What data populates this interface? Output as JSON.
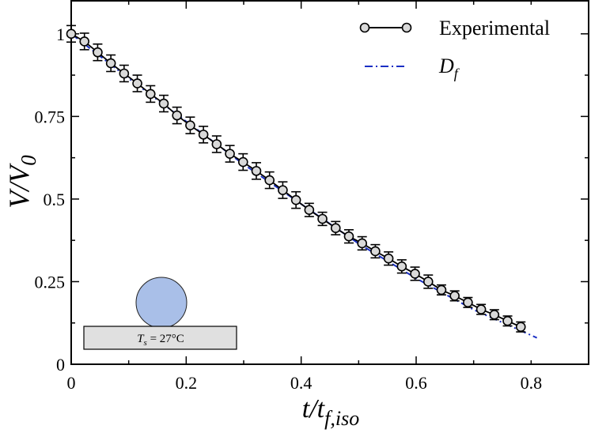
{
  "chart_data": {
    "type": "line",
    "title": "",
    "xlabel": "t/t",
    "xlabel_sub": "f,iso",
    "ylabel": "V/V",
    "ylabel_sub": "0",
    "xlim": [
      0,
      0.9
    ],
    "ylim": [
      0,
      1.1
    ],
    "xticks": [
      0,
      0.2,
      0.4,
      0.6,
      0.8
    ],
    "xtick_labels": [
      "0",
      "0.2",
      "0.4",
      "0.6",
      "0.8"
    ],
    "yticks": [
      0,
      0.25,
      0.5,
      0.75,
      1
    ],
    "ytick_labels": [
      "0",
      "0.25",
      "0.5",
      "0.75",
      "1"
    ],
    "legend_position": "top-right",
    "series": [
      {
        "name": "Experimental",
        "style": "line-with-open-circles",
        "color": "#000000",
        "marker_fill": "#d9d9d9",
        "x": [
          0.0,
          0.023,
          0.046,
          0.069,
          0.092,
          0.115,
          0.138,
          0.161,
          0.184,
          0.207,
          0.23,
          0.253,
          0.276,
          0.299,
          0.322,
          0.345,
          0.368,
          0.391,
          0.414,
          0.437,
          0.46,
          0.483,
          0.506,
          0.529,
          0.552,
          0.575,
          0.598,
          0.621,
          0.644,
          0.667,
          0.69,
          0.713,
          0.736,
          0.759,
          0.782
        ],
        "y": [
          1.0,
          0.977,
          0.944,
          0.911,
          0.88,
          0.85,
          0.818,
          0.789,
          0.753,
          0.723,
          0.695,
          0.666,
          0.637,
          0.612,
          0.585,
          0.557,
          0.527,
          0.497,
          0.467,
          0.44,
          0.412,
          0.387,
          0.366,
          0.342,
          0.32,
          0.296,
          0.274,
          0.25,
          0.225,
          0.207,
          0.187,
          0.166,
          0.15,
          0.131,
          0.113
        ],
        "yerr": [
          0.025,
          0.025,
          0.025,
          0.025,
          0.025,
          0.025,
          0.025,
          0.025,
          0.025,
          0.025,
          0.025,
          0.025,
          0.025,
          0.025,
          0.025,
          0.025,
          0.025,
          0.025,
          0.02,
          0.02,
          0.02,
          0.02,
          0.02,
          0.02,
          0.02,
          0.02,
          0.02,
          0.02,
          0.015,
          0.015,
          0.015,
          0.015,
          0.015,
          0.015,
          0.015
        ]
      },
      {
        "name": "D",
        "name_sub": "f",
        "style": "dash-dot",
        "color": "#1a2fc4",
        "x": [
          0.0,
          0.1,
          0.2,
          0.3,
          0.4,
          0.5,
          0.6,
          0.7,
          0.81
        ],
        "y": [
          1.0,
          0.865,
          0.735,
          0.605,
          0.485,
          0.365,
          0.26,
          0.165,
          0.08
        ]
      }
    ],
    "inset": {
      "label": "T",
      "label_sub": "s",
      "label_rest": " = 27°C",
      "droplet_color": "#a9bfe8",
      "substrate_color": "#e0e0e0"
    }
  }
}
